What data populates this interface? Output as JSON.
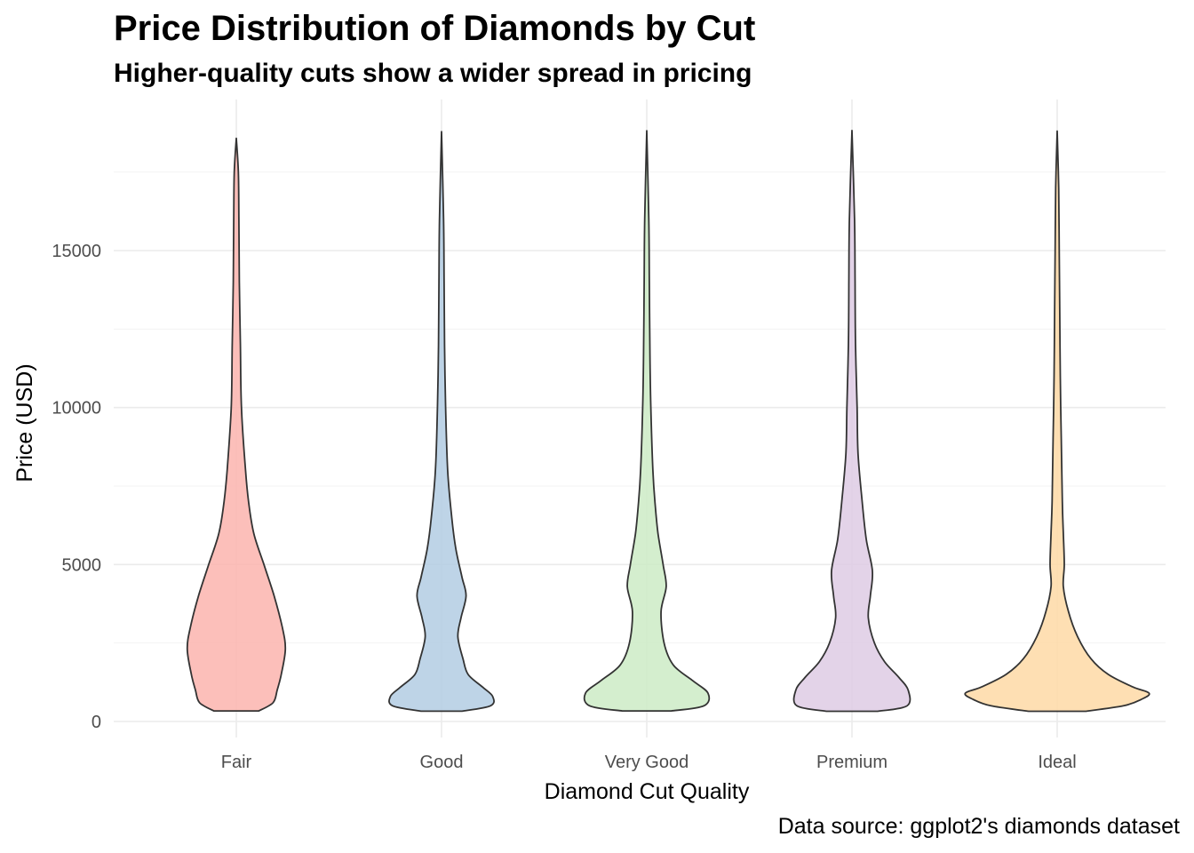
{
  "chart_data": {
    "type": "violin",
    "title": "Price Distribution of Diamonds by Cut",
    "subtitle": "Higher-quality cuts show a wider spread in pricing",
    "xlabel": "Diamond Cut Quality",
    "ylabel": "Price (USD)",
    "caption": "Data source: ggplot2's diamonds dataset",
    "ylim": [
      0,
      18900
    ],
    "yticks": [
      0,
      5000,
      10000,
      15000
    ],
    "grid": true,
    "legend": "none",
    "categories": [
      "Fair",
      "Good",
      "Very Good",
      "Premium",
      "Ideal"
    ],
    "series": [
      {
        "category": "Fair",
        "color": "#FBB4AE",
        "min": 337,
        "max": 18574,
        "density_profile": [
          [
            337,
            0.22
          ],
          [
            600,
            0.36
          ],
          [
            1000,
            0.4
          ],
          [
            1500,
            0.44
          ],
          [
            2300,
            0.48
          ],
          [
            3000,
            0.45
          ],
          [
            4000,
            0.37
          ],
          [
            5000,
            0.27
          ],
          [
            6000,
            0.17
          ],
          [
            7000,
            0.12
          ],
          [
            8000,
            0.09
          ],
          [
            10000,
            0.05
          ],
          [
            12000,
            0.04
          ],
          [
            14000,
            0.03
          ],
          [
            16000,
            0.025
          ],
          [
            17500,
            0.02
          ],
          [
            18574,
            0.0
          ]
        ]
      },
      {
        "category": "Good",
        "color": "#B3CDE3",
        "min": 327,
        "max": 18788,
        "density_profile": [
          [
            327,
            0.2
          ],
          [
            500,
            0.48
          ],
          [
            800,
            0.5
          ],
          [
            1100,
            0.4
          ],
          [
            1500,
            0.26
          ],
          [
            2000,
            0.21
          ],
          [
            2700,
            0.16
          ],
          [
            3300,
            0.19
          ],
          [
            4000,
            0.24
          ],
          [
            4600,
            0.2
          ],
          [
            5500,
            0.14
          ],
          [
            6500,
            0.1
          ],
          [
            8000,
            0.06
          ],
          [
            10000,
            0.04
          ],
          [
            12000,
            0.03
          ],
          [
            14000,
            0.025
          ],
          [
            16000,
            0.02
          ],
          [
            18788,
            0.0
          ]
        ]
      },
      {
        "category": "Very Good",
        "color": "#CCEBC5",
        "min": 336,
        "max": 18818,
        "density_profile": [
          [
            336,
            0.24
          ],
          [
            500,
            0.56
          ],
          [
            900,
            0.6
          ],
          [
            1300,
            0.45
          ],
          [
            1800,
            0.26
          ],
          [
            2500,
            0.17
          ],
          [
            3500,
            0.14
          ],
          [
            4300,
            0.19
          ],
          [
            5000,
            0.16
          ],
          [
            6000,
            0.11
          ],
          [
            7000,
            0.08
          ],
          [
            8000,
            0.06
          ],
          [
            10000,
            0.04
          ],
          [
            12000,
            0.03
          ],
          [
            14000,
            0.025
          ],
          [
            16000,
            0.02
          ],
          [
            18818,
            0.0
          ]
        ]
      },
      {
        "category": "Premium",
        "color": "#DECBE4",
        "min": 326,
        "max": 18823,
        "density_profile": [
          [
            326,
            0.25
          ],
          [
            500,
            0.54
          ],
          [
            1000,
            0.55
          ],
          [
            1400,
            0.46
          ],
          [
            1900,
            0.32
          ],
          [
            2500,
            0.22
          ],
          [
            3300,
            0.16
          ],
          [
            4000,
            0.18
          ],
          [
            4800,
            0.2
          ],
          [
            5800,
            0.14
          ],
          [
            7000,
            0.1
          ],
          [
            8500,
            0.06
          ],
          [
            10000,
            0.05
          ],
          [
            12000,
            0.035
          ],
          [
            14000,
            0.03
          ],
          [
            16000,
            0.025
          ],
          [
            18823,
            0.0
          ]
        ]
      },
      {
        "category": "Ideal",
        "color": "#FED9A6",
        "min": 326,
        "max": 18806,
        "density_profile": [
          [
            326,
            0.28
          ],
          [
            500,
            0.65
          ],
          [
            700,
            0.82
          ],
          [
            900,
            0.9
          ],
          [
            1100,
            0.74
          ],
          [
            1500,
            0.5
          ],
          [
            2000,
            0.33
          ],
          [
            2700,
            0.2
          ],
          [
            3500,
            0.11
          ],
          [
            4300,
            0.06
          ],
          [
            5000,
            0.07
          ],
          [
            6000,
            0.06
          ],
          [
            7000,
            0.05
          ],
          [
            9000,
            0.04
          ],
          [
            11000,
            0.03
          ],
          [
            13000,
            0.025
          ],
          [
            15000,
            0.02
          ],
          [
            17000,
            0.015
          ],
          [
            18806,
            0.0
          ]
        ]
      }
    ]
  }
}
